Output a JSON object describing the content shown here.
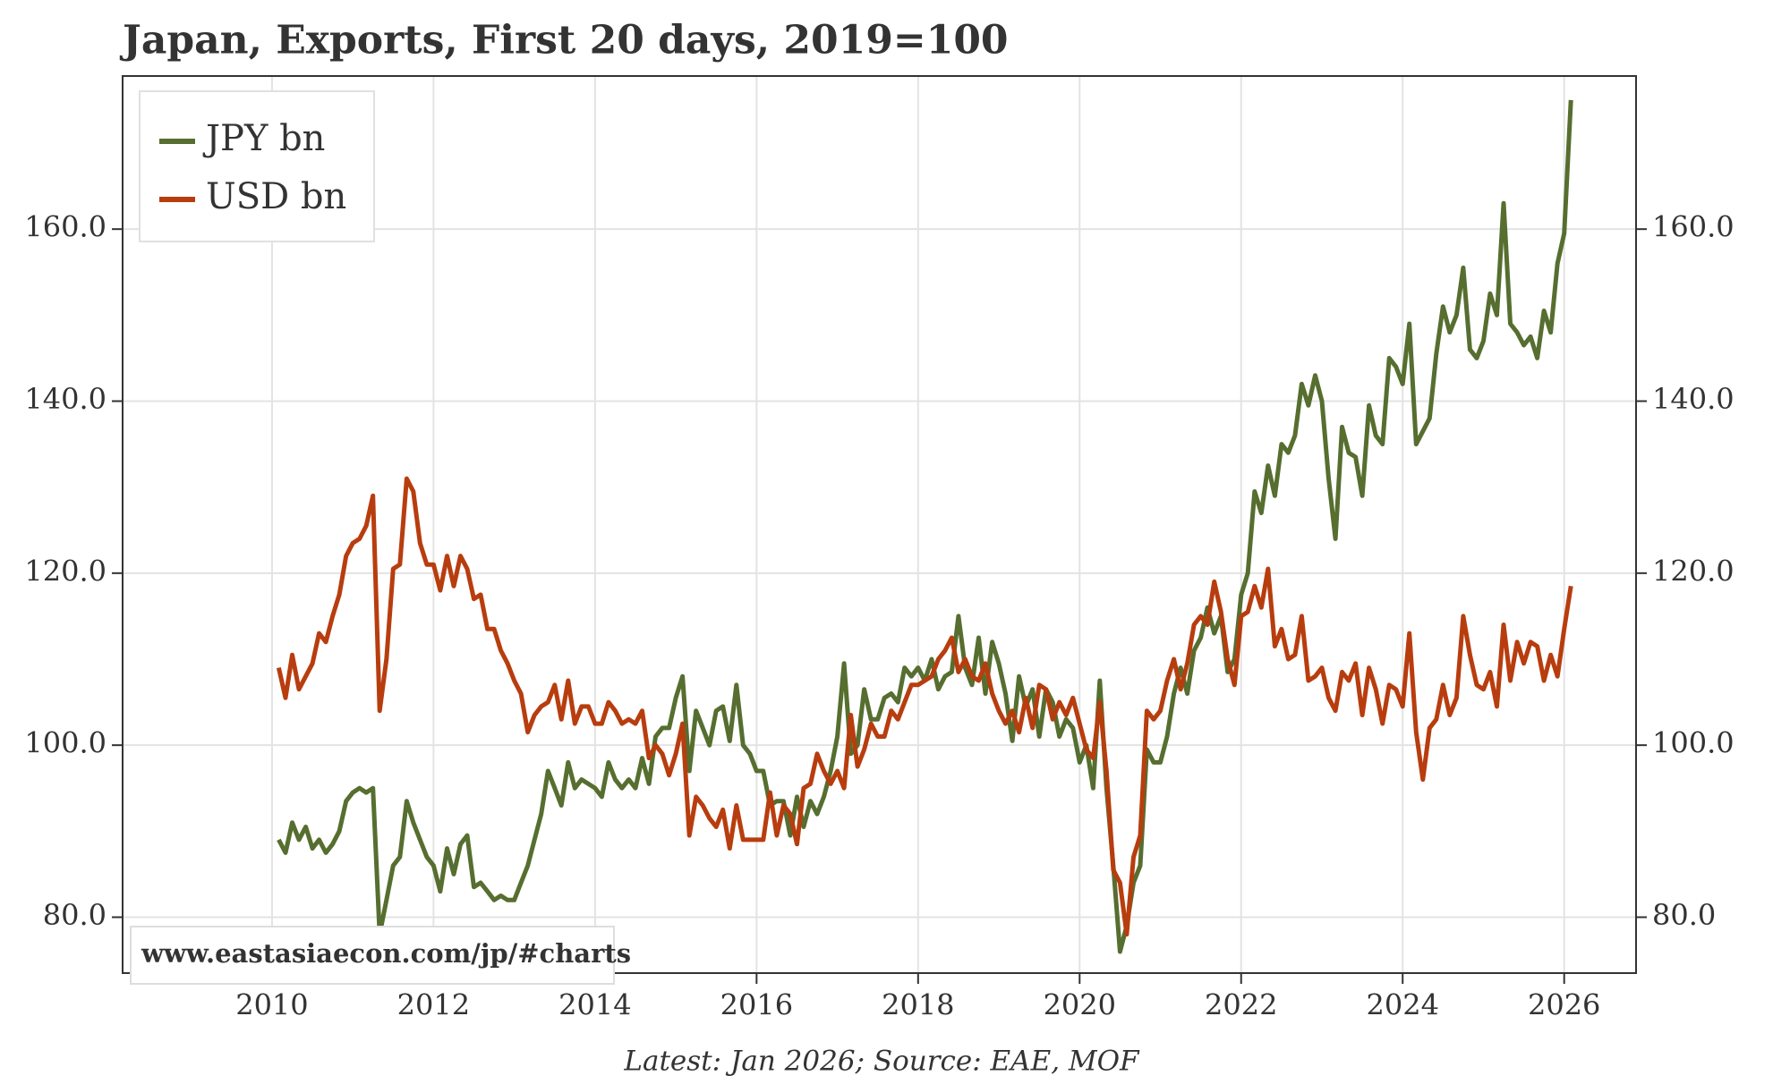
{
  "chart_data": {
    "type": "line",
    "title": "Japan, Exports, First 20 days, 2019=100",
    "note": "Latest: Jan 2026; Source: EAE, MOF",
    "watermark": "www.eastasiaecon.com/jp/#charts",
    "x": [
      2010.083,
      2010.167,
      2010.25,
      2010.333,
      2010.417,
      2010.5,
      2010.583,
      2010.667,
      2010.75,
      2010.833,
      2010.917,
      2011.0,
      2011.083,
      2011.167,
      2011.25,
      2011.333,
      2011.417,
      2011.5,
      2011.583,
      2011.667,
      2011.75,
      2011.833,
      2011.917,
      2012.0,
      2012.083,
      2012.167,
      2012.25,
      2012.333,
      2012.417,
      2012.5,
      2012.583,
      2012.667,
      2012.75,
      2012.833,
      2012.917,
      2013.0,
      2013.083,
      2013.167,
      2013.25,
      2013.333,
      2013.417,
      2013.5,
      2013.583,
      2013.667,
      2013.75,
      2013.833,
      2013.917,
      2014.0,
      2014.083,
      2014.167,
      2014.25,
      2014.333,
      2014.417,
      2014.5,
      2014.583,
      2014.667,
      2014.75,
      2014.833,
      2014.917,
      2015.0,
      2015.083,
      2015.167,
      2015.25,
      2015.333,
      2015.417,
      2015.5,
      2015.583,
      2015.667,
      2015.75,
      2015.833,
      2015.917,
      2016.0,
      2016.083,
      2016.167,
      2016.25,
      2016.333,
      2016.417,
      2016.5,
      2016.583,
      2016.667,
      2016.75,
      2016.833,
      2016.917,
      2017.0,
      2017.083,
      2017.167,
      2017.25,
      2017.333,
      2017.417,
      2017.5,
      2017.583,
      2017.667,
      2017.75,
      2017.833,
      2017.917,
      2018.0,
      2018.083,
      2018.167,
      2018.25,
      2018.333,
      2018.417,
      2018.5,
      2018.583,
      2018.667,
      2018.75,
      2018.833,
      2018.917,
      2019.0,
      2019.083,
      2019.167,
      2019.25,
      2019.333,
      2019.417,
      2019.5,
      2019.583,
      2019.667,
      2019.75,
      2019.833,
      2019.917,
      2020.0,
      2020.083,
      2020.167,
      2020.25,
      2020.333,
      2020.417,
      2020.5,
      2020.583,
      2020.667,
      2020.75,
      2020.833,
      2020.917,
      2021.0,
      2021.083,
      2021.167,
      2021.25,
      2021.333,
      2021.417,
      2021.5,
      2021.583,
      2021.667,
      2021.75,
      2021.833,
      2021.917,
      2022.0,
      2022.083,
      2022.167,
      2022.25,
      2022.333,
      2022.417,
      2022.5,
      2022.583,
      2022.667,
      2022.75,
      2022.833,
      2022.917,
      2023.0,
      2023.083,
      2023.167,
      2023.25,
      2023.333,
      2023.417,
      2023.5,
      2023.583,
      2023.667,
      2023.75,
      2023.833,
      2023.917,
      2024.0,
      2024.083,
      2024.167,
      2024.25,
      2024.333,
      2024.417,
      2024.5,
      2024.583,
      2024.667,
      2024.75,
      2024.833,
      2024.917,
      2025.0,
      2025.083,
      2025.167,
      2025.25,
      2025.333,
      2025.417,
      2025.5,
      2025.583,
      2025.667,
      2025.75,
      2025.833,
      2025.917,
      2026.0,
      2026.083
    ],
    "series": [
      {
        "name": "JPY bn",
        "color": "#566e2f",
        "values": [
          89,
          87.5,
          91,
          89,
          90.5,
          88,
          89,
          87.5,
          88.5,
          90,
          93.5,
          94.5,
          95,
          94.5,
          95,
          78,
          82,
          86,
          87,
          93.5,
          91,
          89,
          87,
          86,
          83,
          88,
          85,
          88.5,
          89.5,
          83.5,
          84,
          83,
          82,
          82.5,
          82,
          82,
          84,
          86,
          89,
          92,
          97,
          95,
          93,
          98,
          95,
          96,
          95.5,
          95,
          94,
          98,
          96,
          95,
          96,
          95,
          98.5,
          95.5,
          101,
          102,
          102,
          105.5,
          108,
          97,
          104,
          102,
          100,
          104,
          104.5,
          100.5,
          107,
          100,
          99,
          97,
          97,
          93,
          93.5,
          93.5,
          89.5,
          94,
          90.5,
          93.5,
          92,
          94,
          97,
          101,
          109.5,
          99,
          100,
          106.5,
          103,
          103,
          105.5,
          106,
          105,
          109,
          108,
          109,
          107.5,
          110,
          106.5,
          108,
          108.5,
          115,
          109,
          107,
          112.5,
          106,
          112,
          109.5,
          106,
          100.5,
          108,
          104.5,
          106.5,
          101,
          106.5,
          105,
          101,
          103,
          102,
          98,
          100,
          95,
          107.5,
          95,
          86,
          76,
          79,
          84,
          86,
          99.5,
          98,
          98,
          101,
          106,
          109,
          106,
          111,
          112.5,
          116,
          113,
          115,
          108.5,
          110,
          117.5,
          120,
          129.5,
          127,
          132.5,
          129,
          135,
          134,
          136,
          142,
          139.5,
          143,
          140,
          131,
          124,
          137,
          134,
          133.5,
          129,
          139.5,
          136,
          135,
          145,
          144,
          142,
          149,
          135,
          136.5,
          138,
          145.5,
          151,
          148,
          150,
          155.5,
          146,
          145,
          147,
          152.5,
          150,
          163,
          149,
          148,
          146.5,
          147.5,
          145,
          150.5,
          148,
          156,
          159.5,
          175
        ]
      },
      {
        "name": "USD bn",
        "color": "#b83d0e",
        "values": [
          109,
          105.5,
          110.5,
          106.5,
          108,
          109.5,
          113,
          112,
          115,
          117.5,
          122,
          123.5,
          124,
          125.5,
          129,
          104,
          110,
          120.5,
          121,
          131,
          129.5,
          123.5,
          121,
          121,
          118,
          122,
          118.5,
          122,
          120.5,
          117,
          117.5,
          113.5,
          113.5,
          111,
          109.5,
          107.5,
          106,
          101.5,
          103.5,
          104.5,
          105,
          107,
          103,
          107.5,
          102.5,
          104.5,
          104.5,
          102.5,
          102.5,
          105,
          104,
          102.5,
          103,
          102.5,
          104,
          98.5,
          100,
          99,
          96.5,
          99,
          102.5,
          89.5,
          94,
          93,
          91.5,
          90.5,
          92.5,
          88,
          93,
          89,
          89,
          89,
          89,
          94.5,
          89.5,
          93,
          92,
          88.5,
          95,
          95.5,
          99,
          97,
          95.5,
          97,
          95,
          103.5,
          97.5,
          99.5,
          102.5,
          101,
          101,
          104,
          103,
          105,
          107,
          107,
          107.5,
          108,
          110,
          111,
          112.5,
          108.5,
          110,
          108,
          107.5,
          109.5,
          106,
          104,
          102.5,
          104,
          101.5,
          105.5,
          102,
          107,
          106.5,
          103,
          105,
          103.5,
          105.5,
          102.5,
          99.5,
          98.5,
          105,
          97,
          85.5,
          84,
          78,
          87,
          89.5,
          104,
          103,
          104,
          107.5,
          110,
          106.5,
          109.5,
          114,
          115,
          114,
          119,
          115.5,
          110,
          107,
          115,
          115.5,
          118.5,
          116,
          120.5,
          111.5,
          113.5,
          110,
          110.5,
          115,
          107.5,
          108,
          109,
          105.5,
          104,
          108.5,
          107.5,
          109.5,
          103.5,
          109,
          106.5,
          102.5,
          107,
          106.5,
          104.5,
          113,
          101.5,
          96,
          102,
          103,
          107,
          103.5,
          105.5,
          115,
          110.5,
          107,
          106.5,
          108.5,
          104.5,
          114,
          107.5,
          112,
          109.5,
          112,
          111.5,
          107.5,
          110.5,
          108,
          113.5,
          118.5
        ]
      }
    ],
    "xlim": [
      2008.15,
      2026.89
    ],
    "xticks": [
      2010,
      2012,
      2014,
      2016,
      2018,
      2020,
      2022,
      2024,
      2026
    ],
    "ylim": [
      73.5,
      177.8
    ],
    "yticks": [
      {
        "value": 80,
        "label": "80.0"
      },
      {
        "value": 100,
        "label": "100.0"
      },
      {
        "value": 120,
        "label": "120.0"
      },
      {
        "value": 140,
        "label": "140.0"
      },
      {
        "value": 160,
        "label": "160.0"
      }
    ],
    "y2lim": [
      73.5,
      177.8
    ],
    "y2ticks": [
      {
        "value": 80,
        "label": "80.0"
      },
      {
        "value": 100,
        "label": "100.0"
      },
      {
        "value": 120,
        "label": "120.0"
      },
      {
        "value": 140,
        "label": "140.0"
      },
      {
        "value": 160,
        "label": "160.0"
      }
    ],
    "grid": true,
    "legend": "upper left"
  }
}
